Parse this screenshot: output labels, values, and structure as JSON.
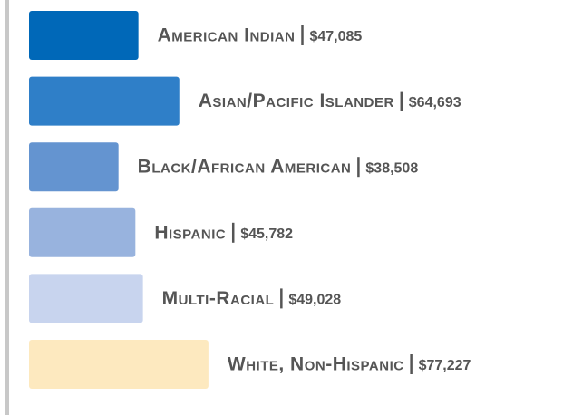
{
  "chart_data": {
    "type": "bar",
    "orientation": "horizontal",
    "categories": [
      "American Indian",
      "Asian/Pacific Islander",
      "Black/African American",
      "Hispanic",
      "Multi-Racial",
      "White, Non-Hispanic"
    ],
    "values": [
      47085,
      64693,
      38508,
      45782,
      49028,
      77227
    ],
    "value_labels": [
      "$47,085",
      "$64,693",
      "$38,508",
      "$45,782",
      "$49,028",
      "$77,227"
    ],
    "colors": [
      "#0068b8",
      "#2f7fc8",
      "#6494d0",
      "#98b3de",
      "#c8d4ee",
      "#fde9bf"
    ],
    "xlim": [
      0,
      80000
    ]
  }
}
